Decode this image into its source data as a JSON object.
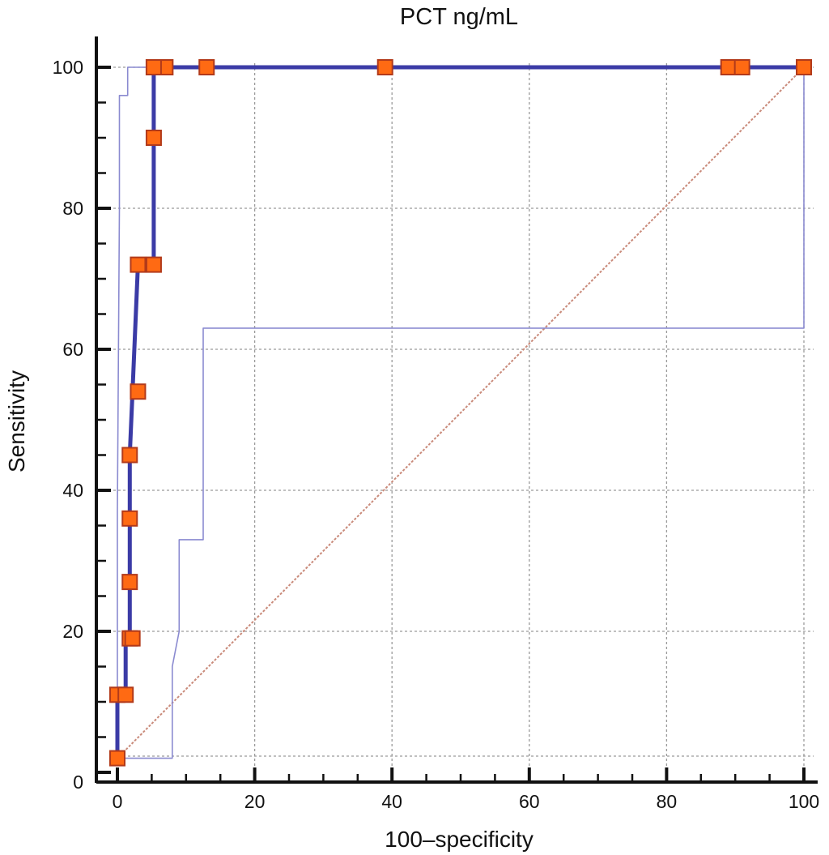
{
  "chart_data": {
    "type": "line",
    "title": "PCT ng/mL",
    "xlabel": "100–specificity",
    "ylabel": "Sensitivity",
    "xlim": [
      0,
      100
    ],
    "ylim": [
      0,
      100
    ],
    "x_ticks": [
      0,
      20,
      40,
      60,
      80,
      100
    ],
    "y_ticks": [
      0,
      20,
      40,
      60,
      80,
      100
    ],
    "grid": true,
    "series": [
      {
        "role": "roc",
        "color": "#3b3ba6",
        "x": [
          0,
          0,
          1.2,
          1.2,
          1.8,
          1.8,
          1.8,
          1.8,
          2.2,
          3,
          3,
          5.3,
          5.3,
          5.3,
          5.3,
          7,
          13,
          39,
          89,
          91,
          100
        ],
        "y": [
          2,
          11,
          11,
          19,
          19,
          27,
          36,
          45,
          54,
          72,
          72,
          72,
          90,
          100,
          100,
          100,
          100,
          100,
          100,
          100,
          100
        ]
      },
      {
        "role": "upper-confidence-bound",
        "color": "#8a8ad0",
        "x": [
          0,
          0,
          0.3,
          0.3,
          1.5,
          1.5,
          100
        ],
        "y": [
          2,
          37,
          80,
          96,
          96,
          100,
          100
        ]
      },
      {
        "role": "lower-confidence-bound",
        "color": "#8a8ad0",
        "x": [
          0,
          0,
          8,
          8,
          9,
          9,
          12.5,
          12.5,
          100,
          100
        ],
        "y": [
          2,
          2,
          2,
          15,
          20,
          33,
          33,
          63,
          63,
          100
        ]
      },
      {
        "role": "reference-diagonal",
        "color": "#c98a7a",
        "x": [
          0,
          100
        ],
        "y": [
          2,
          100
        ]
      }
    ],
    "markers": {
      "color": "#ff6a13",
      "edge_color": "#b23a1a",
      "x": [
        0,
        0,
        1.2,
        1.8,
        1.8,
        1.8,
        1.8,
        3,
        3,
        5.3,
        5.3,
        5.3,
        7,
        13,
        39,
        89,
        91,
        100,
        2.2,
        5.3
      ],
      "y": [
        2,
        11,
        11,
        19,
        27,
        36,
        45,
        54,
        72,
        72,
        90,
        100,
        100,
        100,
        100,
        100,
        100,
        100,
        19,
        100
      ]
    }
  }
}
